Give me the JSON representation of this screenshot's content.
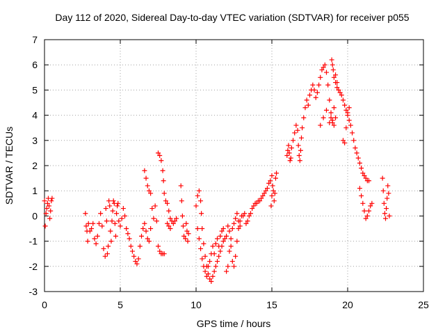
{
  "chart_data": {
    "type": "scatter",
    "title": "Day 112 of 2020, Sidereal Day-to-day VTEC variation (SDTVAR) for receiver p055",
    "xlabel": "GPS time / hours",
    "ylabel": "SDTVAR / TECUs",
    "xlim": [
      0,
      25
    ],
    "ylim": [
      -3,
      7
    ],
    "xticks": [
      0,
      5,
      10,
      15,
      20,
      25
    ],
    "yticks": [
      -3,
      -2,
      -1,
      0,
      1,
      2,
      3,
      4,
      5,
      6,
      7
    ],
    "xtick_labels": [
      "0",
      "5",
      "10",
      "15",
      "20",
      "25"
    ],
    "ytick_labels": [
      "-3",
      "-2",
      "-1",
      "0",
      "1",
      "2",
      "3",
      "4",
      "5",
      "6",
      "7"
    ],
    "grid": true,
    "marker": "plus",
    "color": "#ff0000",
    "series": [
      {
        "name": "SDTVAR",
        "points": [
          [
            0.0,
            0.6
          ],
          [
            0.05,
            -0.4
          ],
          [
            0.1,
            0.1
          ],
          [
            0.15,
            0.3
          ],
          [
            0.2,
            0.5
          ],
          [
            0.25,
            0.7
          ],
          [
            0.3,
            0.4
          ],
          [
            0.35,
            -0.1
          ],
          [
            0.4,
            0.2
          ],
          [
            0.45,
            0.6
          ],
          [
            0.5,
            0.7
          ],
          [
            2.7,
            0.1
          ],
          [
            2.75,
            -0.4
          ],
          [
            2.8,
            -0.6
          ],
          [
            2.85,
            -1.0
          ],
          [
            2.9,
            -0.3
          ],
          [
            3.0,
            -0.6
          ],
          [
            3.1,
            -0.5
          ],
          [
            3.2,
            -0.3
          ],
          [
            3.3,
            -0.9
          ],
          [
            3.4,
            -1.1
          ],
          [
            3.5,
            -0.8
          ],
          [
            3.6,
            -0.3
          ],
          [
            3.7,
            0.1
          ],
          [
            3.8,
            -0.4
          ],
          [
            3.9,
            -1.3
          ],
          [
            4.0,
            -1.6
          ],
          [
            4.05,
            0.3
          ],
          [
            4.1,
            -0.2
          ],
          [
            4.15,
            -1.5
          ],
          [
            4.2,
            -1.2
          ],
          [
            4.25,
            0.6
          ],
          [
            4.3,
            0.4
          ],
          [
            4.35,
            -0.6
          ],
          [
            4.4,
            -1.0
          ],
          [
            4.45,
            -0.2
          ],
          [
            4.5,
            0.2
          ],
          [
            4.55,
            0.6
          ],
          [
            4.6,
            0.5
          ],
          [
            4.65,
            -0.3
          ],
          [
            4.7,
            -0.8
          ],
          [
            4.75,
            0.1
          ],
          [
            4.8,
            0.4
          ],
          [
            4.85,
            0.5
          ],
          [
            4.9,
            -0.2
          ],
          [
            5.0,
            -0.4
          ],
          [
            5.1,
            -0.1
          ],
          [
            5.2,
            0.3
          ],
          [
            5.3,
            0.0
          ],
          [
            5.4,
            -0.5
          ],
          [
            5.5,
            -0.7
          ],
          [
            5.6,
            -0.9
          ],
          [
            5.7,
            -1.2
          ],
          [
            5.8,
            -1.4
          ],
          [
            5.9,
            -1.6
          ],
          [
            6.0,
            -1.8
          ],
          [
            6.1,
            -1.9
          ],
          [
            6.2,
            -1.7
          ],
          [
            6.3,
            -1.2
          ],
          [
            6.4,
            -0.8
          ],
          [
            6.5,
            -0.5
          ],
          [
            6.6,
            -0.3
          ],
          [
            6.7,
            -0.6
          ],
          [
            6.8,
            -0.9
          ],
          [
            6.9,
            -1.0
          ],
          [
            7.0,
            -0.5
          ],
          [
            6.6,
            1.8
          ],
          [
            6.7,
            1.5
          ],
          [
            6.8,
            1.2
          ],
          [
            6.9,
            1.0
          ],
          [
            7.0,
            0.9
          ],
          [
            7.1,
            0.3
          ],
          [
            7.2,
            -0.1
          ],
          [
            7.3,
            0.4
          ],
          [
            7.4,
            -0.2
          ],
          [
            7.5,
            -1.2
          ],
          [
            7.6,
            -1.4
          ],
          [
            7.7,
            -1.5
          ],
          [
            7.8,
            -1.5
          ],
          [
            7.9,
            -1.5
          ],
          [
            7.5,
            2.5
          ],
          [
            7.6,
            2.4
          ],
          [
            7.7,
            2.2
          ],
          [
            7.8,
            1.8
          ],
          [
            7.85,
            1.4
          ],
          [
            7.9,
            0.9
          ],
          [
            8.0,
            0.6
          ],
          [
            8.1,
            0.5
          ],
          [
            8.2,
            0.2
          ],
          [
            8.3,
            -0.1
          ],
          [
            8.4,
            -0.2
          ],
          [
            8.5,
            -0.3
          ],
          [
            8.6,
            -0.2
          ],
          [
            8.7,
            -0.1
          ],
          [
            8.1,
            -0.3
          ],
          [
            8.2,
            -0.4
          ],
          [
            8.3,
            -0.5
          ],
          [
            9.0,
            1.2
          ],
          [
            9.05,
            0.6
          ],
          [
            9.1,
            0.0
          ],
          [
            9.15,
            -0.4
          ],
          [
            9.2,
            -0.8
          ],
          [
            9.3,
            -0.9
          ],
          [
            9.35,
            -0.3
          ],
          [
            9.4,
            -0.6
          ],
          [
            9.45,
            -1.0
          ],
          [
            9.5,
            -0.7
          ],
          [
            10.0,
            0.4
          ],
          [
            10.1,
            0.8
          ],
          [
            10.2,
            1.0
          ],
          [
            10.3,
            0.6
          ],
          [
            10.35,
            0.1
          ],
          [
            10.4,
            -0.5
          ],
          [
            10.5,
            -1.1
          ],
          [
            10.6,
            -1.6
          ],
          [
            10.7,
            -2.0
          ],
          [
            10.8,
            -2.3
          ],
          [
            10.9,
            -2.5
          ],
          [
            11.0,
            -2.6
          ],
          [
            11.1,
            -2.4
          ],
          [
            11.2,
            -2.2
          ],
          [
            11.3,
            -2.0
          ],
          [
            11.4,
            -1.8
          ],
          [
            11.5,
            -1.6
          ],
          [
            11.6,
            -1.4
          ],
          [
            11.7,
            -1.2
          ],
          [
            11.8,
            -1.0
          ],
          [
            11.9,
            -0.9
          ],
          [
            12.0,
            -0.8
          ],
          [
            10.1,
            -0.5
          ],
          [
            10.2,
            -0.9
          ],
          [
            10.3,
            -1.3
          ],
          [
            10.4,
            -1.7
          ],
          [
            10.5,
            -2.0
          ],
          [
            10.6,
            -2.2
          ],
          [
            10.7,
            -2.4
          ],
          [
            10.8,
            -2.0
          ],
          [
            10.9,
            -1.8
          ],
          [
            11.0,
            -1.5
          ],
          [
            11.1,
            -1.2
          ],
          [
            11.2,
            -1.5
          ],
          [
            11.3,
            -1.1
          ],
          [
            11.4,
            -0.9
          ],
          [
            11.5,
            -1.2
          ],
          [
            11.6,
            -0.8
          ],
          [
            11.7,
            -0.6
          ],
          [
            11.8,
            -0.5
          ],
          [
            12.1,
            -0.4
          ],
          [
            12.2,
            -0.6
          ],
          [
            12.3,
            -1.2
          ],
          [
            12.4,
            -1.8
          ],
          [
            12.5,
            -2.0
          ],
          [
            12.6,
            -1.6
          ],
          [
            12.7,
            -1.0
          ],
          [
            12.8,
            -0.5
          ],
          [
            12.9,
            -0.2
          ],
          [
            13.0,
            0.0
          ],
          [
            12.0,
            -2.2
          ],
          [
            12.1,
            -2.0
          ],
          [
            12.2,
            -1.4
          ],
          [
            12.3,
            -0.9
          ],
          [
            12.4,
            -0.5
          ],
          [
            12.5,
            -0.3
          ],
          [
            12.6,
            -0.1
          ],
          [
            12.7,
            0.1
          ],
          [
            12.8,
            -0.2
          ],
          [
            12.9,
            -0.4
          ],
          [
            13.1,
            0.0
          ],
          [
            13.2,
            0.1
          ],
          [
            13.3,
            -0.3
          ],
          [
            13.4,
            -0.2
          ],
          [
            13.5,
            0.0
          ],
          [
            13.6,
            0.1
          ],
          [
            13.7,
            0.3
          ],
          [
            13.8,
            0.4
          ],
          [
            13.9,
            0.5
          ],
          [
            14.0,
            0.5
          ],
          [
            14.1,
            0.6
          ],
          [
            14.2,
            0.6
          ],
          [
            14.3,
            0.7
          ],
          [
            14.4,
            0.8
          ],
          [
            14.5,
            0.9
          ],
          [
            14.6,
            1.0
          ],
          [
            14.7,
            1.1
          ],
          [
            14.8,
            1.3
          ],
          [
            14.9,
            1.4
          ],
          [
            15.0,
            1.6
          ],
          [
            14.95,
            0.4
          ],
          [
            15.0,
            0.8
          ],
          [
            15.05,
            1.2
          ],
          [
            15.1,
            1.0
          ],
          [
            15.15,
            0.6
          ],
          [
            15.2,
            0.9
          ],
          [
            15.25,
            1.5
          ],
          [
            15.3,
            1.7
          ],
          [
            16.0,
            2.4
          ],
          [
            16.05,
            2.6
          ],
          [
            16.1,
            2.8
          ],
          [
            16.15,
            2.5
          ],
          [
            16.2,
            2.2
          ],
          [
            16.25,
            2.3
          ],
          [
            16.3,
            2.7
          ],
          [
            16.4,
            3.0
          ],
          [
            16.5,
            3.3
          ],
          [
            16.6,
            3.6
          ],
          [
            16.7,
            3.4
          ],
          [
            16.75,
            2.8
          ],
          [
            16.8,
            2.4
          ],
          [
            16.85,
            2.2
          ],
          [
            16.9,
            2.6
          ],
          [
            16.95,
            3.1
          ],
          [
            17.0,
            3.5
          ],
          [
            17.1,
            3.9
          ],
          [
            17.2,
            4.3
          ],
          [
            17.3,
            4.6
          ],
          [
            17.4,
            4.4
          ],
          [
            17.5,
            4.8
          ],
          [
            17.6,
            5.0
          ],
          [
            17.7,
            5.2
          ],
          [
            17.8,
            5.0
          ],
          [
            17.9,
            4.7
          ],
          [
            18.0,
            4.9
          ],
          [
            18.1,
            5.2
          ],
          [
            18.2,
            5.5
          ],
          [
            18.3,
            5.8
          ],
          [
            18.4,
            5.9
          ],
          [
            18.5,
            6.0
          ],
          [
            18.6,
            5.7
          ],
          [
            18.7,
            5.2
          ],
          [
            18.8,
            4.6
          ],
          [
            18.9,
            4.1
          ],
          [
            19.0,
            3.7
          ],
          [
            19.1,
            4.3
          ],
          [
            19.2,
            5.3
          ],
          [
            19.3,
            5.1
          ],
          [
            18.95,
            6.2
          ],
          [
            19.0,
            6.0
          ],
          [
            19.05,
            5.8
          ],
          [
            19.1,
            5.5
          ],
          [
            19.2,
            5.6
          ],
          [
            19.3,
            5.3
          ],
          [
            19.4,
            5.0
          ],
          [
            19.5,
            4.9
          ],
          [
            19.6,
            4.8
          ],
          [
            19.7,
            4.6
          ],
          [
            19.8,
            4.4
          ],
          [
            19.9,
            4.2
          ],
          [
            20.0,
            4.0
          ],
          [
            20.1,
            3.8
          ],
          [
            20.2,
            3.6
          ],
          [
            20.3,
            3.3
          ],
          [
            20.4,
            3.0
          ],
          [
            20.5,
            2.7
          ],
          [
            20.6,
            2.5
          ],
          [
            20.7,
            2.3
          ],
          [
            20.8,
            2.1
          ],
          [
            20.9,
            1.9
          ],
          [
            21.0,
            1.7
          ],
          [
            21.1,
            1.6
          ],
          [
            21.2,
            1.5
          ],
          [
            21.3,
            1.4
          ],
          [
            21.4,
            1.4
          ],
          [
            19.7,
            3.0
          ],
          [
            19.8,
            2.9
          ],
          [
            19.9,
            3.5
          ],
          [
            20.0,
            4.1
          ],
          [
            20.1,
            4.3
          ],
          [
            18.8,
            3.7
          ],
          [
            18.9,
            3.9
          ],
          [
            19.0,
            3.8
          ],
          [
            19.1,
            3.6
          ],
          [
            19.2,
            3.9
          ],
          [
            18.2,
            3.6
          ],
          [
            18.4,
            3.9
          ],
          [
            18.6,
            4.2
          ],
          [
            20.8,
            1.1
          ],
          [
            20.9,
            0.8
          ],
          [
            21.0,
            0.5
          ],
          [
            21.1,
            0.2
          ],
          [
            21.2,
            -0.1
          ],
          [
            21.3,
            0.0
          ],
          [
            21.4,
            0.2
          ],
          [
            21.5,
            0.4
          ],
          [
            21.6,
            0.5
          ],
          [
            22.3,
            1.5
          ],
          [
            22.35,
            1.0
          ],
          [
            22.4,
            0.5
          ],
          [
            22.45,
            0.1
          ],
          [
            22.5,
            -0.1
          ],
          [
            22.55,
            0.3
          ],
          [
            22.6,
            0.7
          ],
          [
            22.65,
            1.2
          ],
          [
            22.7,
            0.9
          ],
          [
            22.75,
            0.0
          ]
        ]
      }
    ]
  }
}
